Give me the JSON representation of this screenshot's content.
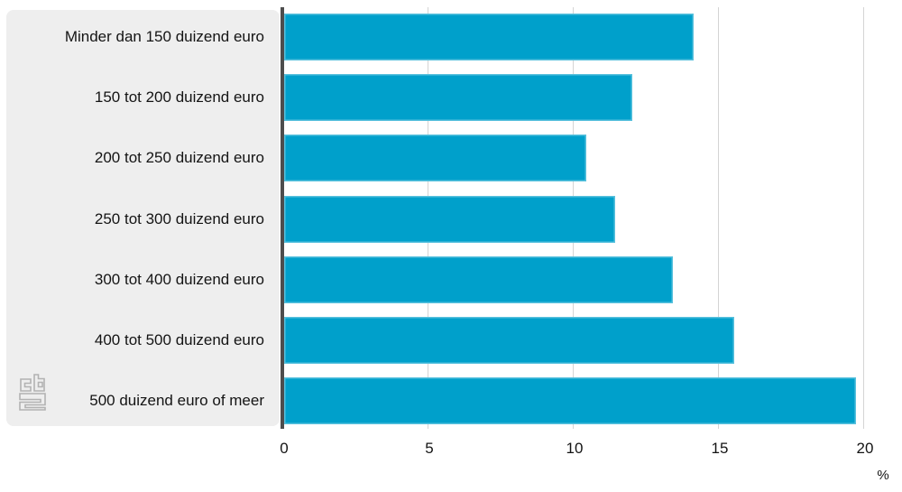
{
  "chart_data": {
    "type": "bar",
    "orientation": "horizontal",
    "title": "",
    "categories": [
      "Minder dan 150 duizend euro",
      "150 tot 200 duizend euro",
      "200 tot 250 duizend euro",
      "250 tot 300 duizend euro",
      "300 tot 400 duizend euro",
      "400 tot 500 duizend euro",
      "500 duizend euro of meer"
    ],
    "values": [
      14.1,
      12.0,
      10.4,
      11.4,
      13.4,
      15.5,
      19.7
    ],
    "xlabel": "%",
    "xlim": [
      0,
      20
    ],
    "xticks": [
      0,
      5,
      10,
      15,
      20
    ],
    "xtick_labels": [
      "0",
      "5",
      "10",
      "15",
      "20"
    ],
    "grid": true,
    "legend": null
  },
  "axis": {
    "unit_label": "%"
  },
  "logo": {
    "name": "cbs-logo"
  },
  "colors": {
    "bar": "#00a0cb",
    "panel_bg": "#eeeeee",
    "gridline": "#d4d4d4",
    "zero_line": "#4d4d4d",
    "text": "#141414",
    "logo": "#b2b2b2"
  }
}
